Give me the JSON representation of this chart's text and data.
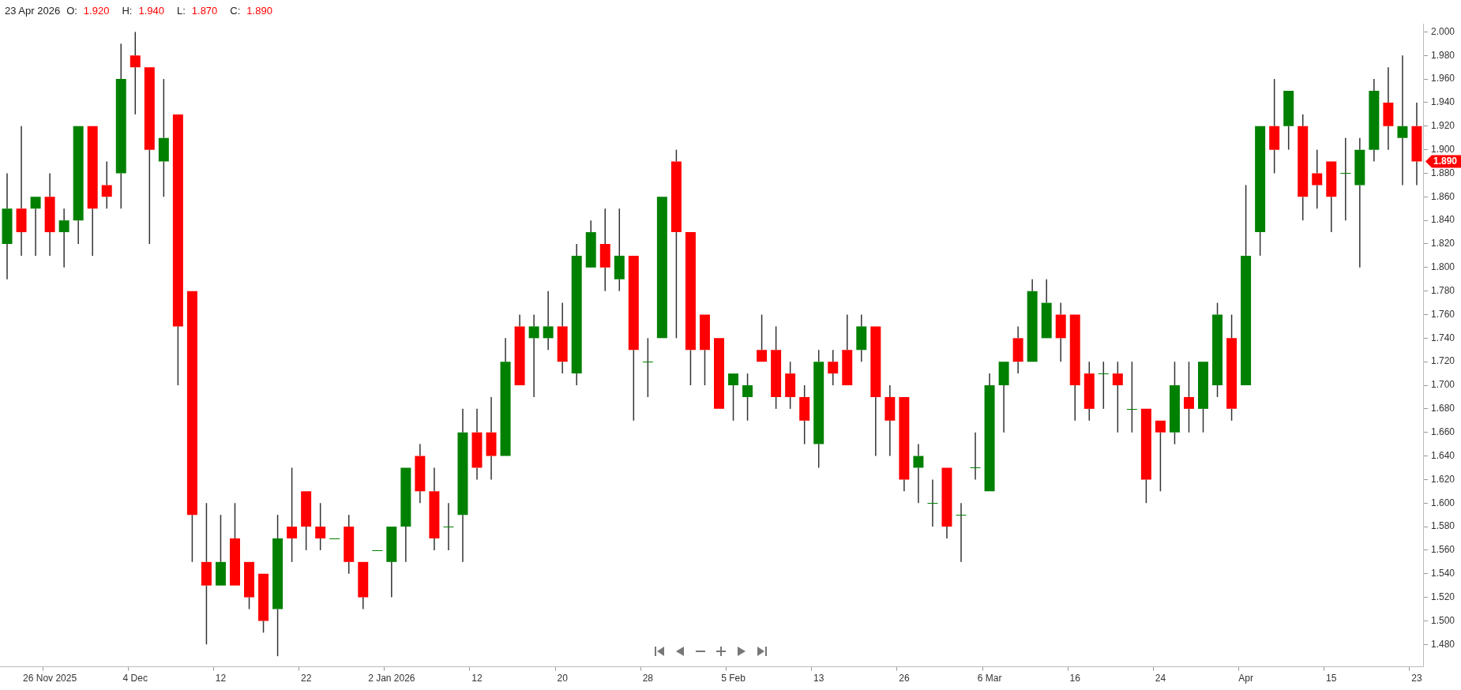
{
  "chart_data": {
    "type": "candlestick",
    "title": "23 Apr 2026",
    "annotations": [
      "O: 1.920",
      "H: 1.940",
      "L: 1.870",
      "C: 1.890",
      {
        "text": "1.890",
        "x": "23",
        "y": 1.89
      }
    ],
    "categories": [
      null,
      null,
      null,
      "26 Nov 2025",
      null,
      null,
      null,
      null,
      null,
      "4 Dec",
      null,
      null,
      null,
      null,
      null,
      "12",
      null,
      null,
      null,
      null,
      null,
      "22",
      null,
      null,
      null,
      null,
      null,
      "2 Jan 2026",
      null,
      null,
      null,
      null,
      null,
      "12",
      null,
      null,
      null,
      null,
      null,
      "20",
      null,
      null,
      null,
      null,
      null,
      "28",
      null,
      null,
      null,
      null,
      null,
      "5 Feb",
      null,
      null,
      null,
      null,
      null,
      "13",
      null,
      null,
      null,
      null,
      null,
      "26",
      null,
      null,
      null,
      null,
      null,
      "6 Mar",
      null,
      null,
      null,
      null,
      null,
      "16",
      null,
      null,
      null,
      null,
      null,
      "24",
      null,
      null,
      null,
      null,
      null,
      "Apr",
      null,
      null,
      null,
      null,
      null,
      "15",
      null,
      null,
      null,
      null,
      null,
      "23"
    ],
    "ohlc": [
      [
        1.82,
        1.88,
        1.79,
        1.85
      ],
      [
        1.85,
        1.92,
        1.81,
        1.83
      ],
      [
        1.85,
        1.86,
        1.81,
        1.86
      ],
      [
        1.86,
        1.88,
        1.81,
        1.83
      ],
      [
        1.83,
        1.85,
        1.8,
        1.84
      ],
      [
        1.84,
        1.92,
        1.82,
        1.92
      ],
      [
        1.92,
        1.92,
        1.81,
        1.85
      ],
      [
        1.87,
        1.89,
        1.85,
        1.86
      ],
      [
        1.88,
        1.99,
        1.85,
        1.96
      ],
      [
        1.98,
        2.0,
        1.93,
        1.97
      ],
      [
        1.97,
        1.97,
        1.82,
        1.9
      ],
      [
        1.89,
        1.96,
        1.86,
        1.91
      ],
      [
        1.93,
        1.93,
        1.7,
        1.75
      ],
      [
        1.78,
        1.78,
        1.55,
        1.59
      ],
      [
        1.55,
        1.6,
        1.48,
        1.53
      ],
      [
        1.53,
        1.59,
        1.53,
        1.55
      ],
      [
        1.57,
        1.6,
        1.53,
        1.53
      ],
      [
        1.55,
        1.55,
        1.51,
        1.52
      ],
      [
        1.54,
        1.54,
        1.49,
        1.5
      ],
      [
        1.51,
        1.59,
        1.47,
        1.57
      ],
      [
        1.58,
        1.63,
        1.55,
        1.57
      ],
      [
        1.61,
        1.61,
        1.56,
        1.58
      ],
      [
        1.58,
        1.6,
        1.56,
        1.57
      ],
      [
        1.57,
        1.57,
        1.57,
        1.57
      ],
      [
        1.58,
        1.59,
        1.54,
        1.55
      ],
      [
        1.55,
        1.55,
        1.51,
        1.52
      ],
      [
        1.56,
        1.56,
        1.56,
        1.56
      ],
      [
        1.55,
        1.58,
        1.52,
        1.58
      ],
      [
        1.58,
        1.63,
        1.55,
        1.63
      ],
      [
        1.64,
        1.65,
        1.6,
        1.61
      ],
      [
        1.61,
        1.63,
        1.56,
        1.57
      ],
      [
        1.58,
        1.6,
        1.56,
        1.58
      ],
      [
        1.59,
        1.68,
        1.55,
        1.66
      ],
      [
        1.66,
        1.68,
        1.62,
        1.63
      ],
      [
        1.66,
        1.69,
        1.62,
        1.64
      ],
      [
        1.64,
        1.74,
        1.64,
        1.72
      ],
      [
        1.75,
        1.76,
        1.7,
        1.7
      ],
      [
        1.74,
        1.76,
        1.69,
        1.75
      ],
      [
        1.74,
        1.78,
        1.73,
        1.75
      ],
      [
        1.75,
        1.77,
        1.71,
        1.72
      ],
      [
        1.71,
        1.82,
        1.7,
        1.81
      ],
      [
        1.8,
        1.84,
        1.8,
        1.83
      ],
      [
        1.82,
        1.85,
        1.78,
        1.8
      ],
      [
        1.79,
        1.85,
        1.78,
        1.81
      ],
      [
        1.81,
        1.81,
        1.67,
        1.73
      ],
      [
        1.72,
        1.74,
        1.69,
        1.72
      ],
      [
        1.74,
        1.86,
        1.74,
        1.86
      ],
      [
        1.89,
        1.9,
        1.74,
        1.83
      ],
      [
        1.83,
        1.83,
        1.7,
        1.73
      ],
      [
        1.76,
        1.76,
        1.7,
        1.73
      ],
      [
        1.74,
        1.74,
        1.68,
        1.68
      ],
      [
        1.7,
        1.71,
        1.67,
        1.71
      ],
      [
        1.69,
        1.71,
        1.67,
        1.7
      ],
      [
        1.73,
        1.76,
        1.72,
        1.72
      ],
      [
        1.73,
        1.75,
        1.68,
        1.69
      ],
      [
        1.71,
        1.72,
        1.68,
        1.69
      ],
      [
        1.69,
        1.7,
        1.65,
        1.67
      ],
      [
        1.65,
        1.73,
        1.63,
        1.72
      ],
      [
        1.72,
        1.73,
        1.7,
        1.71
      ],
      [
        1.73,
        1.76,
        1.7,
        1.7
      ],
      [
        1.73,
        1.76,
        1.72,
        1.75
      ],
      [
        1.75,
        1.75,
        1.64,
        1.69
      ],
      [
        1.69,
        1.7,
        1.64,
        1.67
      ],
      [
        1.69,
        1.69,
        1.61,
        1.62
      ],
      [
        1.63,
        1.65,
        1.6,
        1.64
      ],
      [
        1.6,
        1.62,
        1.58,
        1.6
      ],
      [
        1.63,
        1.63,
        1.57,
        1.58
      ],
      [
        1.59,
        1.6,
        1.55,
        1.59
      ],
      [
        1.63,
        1.66,
        1.62,
        1.63
      ],
      [
        1.61,
        1.71,
        1.61,
        1.7
      ],
      [
        1.7,
        1.72,
        1.66,
        1.72
      ],
      [
        1.74,
        1.75,
        1.71,
        1.72
      ],
      [
        1.72,
        1.79,
        1.72,
        1.78
      ],
      [
        1.74,
        1.79,
        1.74,
        1.77
      ],
      [
        1.76,
        1.77,
        1.72,
        1.74
      ],
      [
        1.76,
        1.76,
        1.67,
        1.7
      ],
      [
        1.71,
        1.72,
        1.67,
        1.68
      ],
      [
        1.71,
        1.72,
        1.68,
        1.71
      ],
      [
        1.71,
        1.72,
        1.66,
        1.7
      ],
      [
        1.68,
        1.72,
        1.66,
        1.68
      ],
      [
        1.68,
        1.68,
        1.6,
        1.62
      ],
      [
        1.67,
        1.67,
        1.61,
        1.66
      ],
      [
        1.66,
        1.72,
        1.65,
        1.7
      ],
      [
        1.69,
        1.72,
        1.66,
        1.68
      ],
      [
        1.68,
        1.72,
        1.66,
        1.72
      ],
      [
        1.7,
        1.77,
        1.69,
        1.76
      ],
      [
        1.74,
        1.76,
        1.67,
        1.68
      ],
      [
        1.7,
        1.87,
        1.7,
        1.81
      ],
      [
        1.83,
        1.92,
        1.81,
        1.92
      ],
      [
        1.92,
        1.96,
        1.88,
        1.9
      ],
      [
        1.92,
        1.95,
        1.9,
        1.95
      ],
      [
        1.92,
        1.93,
        1.84,
        1.86
      ],
      [
        1.88,
        1.9,
        1.85,
        1.87
      ],
      [
        1.89,
        1.89,
        1.83,
        1.86
      ],
      [
        1.88,
        1.91,
        1.84,
        1.88
      ],
      [
        1.87,
        1.91,
        1.8,
        1.9
      ],
      [
        1.9,
        1.96,
        1.89,
        1.95
      ],
      [
        1.94,
        1.97,
        1.9,
        1.92
      ],
      [
        1.91,
        1.98,
        1.87,
        1.92
      ],
      [
        1.92,
        1.94,
        1.87,
        1.89
      ]
    ],
    "colors": [
      "#008000",
      "#ff0000",
      "#008000",
      "#ff0000",
      "#008000",
      "#008000",
      "#ff0000",
      "#ff0000",
      "#008000",
      "#ff0000",
      "#ff0000",
      "#008000",
      "#ff0000",
      "#ff0000",
      "#ff0000",
      "#008000",
      "#ff0000",
      "#ff0000",
      "#ff0000",
      "#008000",
      "#ff0000",
      "#ff0000",
      "#ff0000",
      "#008000",
      "#ff0000",
      "#ff0000",
      "#008000",
      "#008000",
      "#008000",
      "#ff0000",
      "#ff0000",
      "#008000",
      "#008000",
      "#ff0000",
      "#ff0000",
      "#008000",
      "#ff0000",
      "#008000",
      "#008000",
      "#ff0000",
      "#008000",
      "#008000",
      "#ff0000",
      "#008000",
      "#ff0000",
      "#008000",
      "#008000",
      "#ff0000",
      "#ff0000",
      "#ff0000",
      "#ff0000",
      "#008000",
      "#008000",
      "#ff0000",
      "#ff0000",
      "#ff0000",
      "#ff0000",
      "#008000",
      "#ff0000",
      "#ff0000",
      "#008000",
      "#ff0000",
      "#ff0000",
      "#ff0000",
      "#008000",
      "#008000",
      "#ff0000",
      "#008000",
      "#008000",
      "#008000",
      "#008000",
      "#ff0000",
      "#008000",
      "#008000",
      "#ff0000",
      "#ff0000",
      "#ff0000",
      "#008000",
      "#ff0000",
      "#008000",
      "#ff0000",
      "#ff0000",
      "#008000",
      "#ff0000",
      "#008000",
      "#008000",
      "#ff0000",
      "#008000",
      "#008000",
      "#ff0000",
      "#008000",
      "#ff0000",
      "#ff0000",
      "#ff0000",
      "#008000",
      "#008000",
      "#008000",
      "#ff0000",
      "#008000",
      "#ff0000"
    ],
    "ylim": [
      1.461,
      2.007
    ],
    "yticks": [
      {
        "value": 1.48,
        "label": "1.480"
      },
      {
        "value": 1.5,
        "label": "1.500"
      },
      {
        "value": 1.52,
        "label": "1.520"
      },
      {
        "value": 1.54,
        "label": "1.540"
      },
      {
        "value": 1.56,
        "label": "1.560"
      },
      {
        "value": 1.58,
        "label": "1.580"
      },
      {
        "value": 1.6,
        "label": "1.600"
      },
      {
        "value": 1.62,
        "label": "1.620"
      },
      {
        "value": 1.64,
        "label": "1.640"
      },
      {
        "value": 1.66,
        "label": "1.660"
      },
      {
        "value": 1.68,
        "label": "1.680"
      },
      {
        "value": 1.7,
        "label": "1.700"
      },
      {
        "value": 1.72,
        "label": "1.720"
      },
      {
        "value": 1.74,
        "label": "1.740"
      },
      {
        "value": 1.76,
        "label": "1.760"
      },
      {
        "value": 1.78,
        "label": "1.780"
      },
      {
        "value": 1.8,
        "label": "1.800"
      },
      {
        "value": 1.82,
        "label": "1.820"
      },
      {
        "value": 1.84,
        "label": "1.840"
      },
      {
        "value": 1.86,
        "label": "1.860"
      },
      {
        "value": 1.88,
        "label": "1.880"
      },
      {
        "value": 1.9,
        "label": "1.900"
      },
      {
        "value": 1.92,
        "label": "1.920"
      },
      {
        "value": 1.94,
        "label": "1.940"
      },
      {
        "value": 1.96,
        "label": "1.960"
      },
      {
        "value": 1.98,
        "label": "1.980"
      },
      {
        "value": 2.0,
        "label": "2.000"
      }
    ]
  }
}
